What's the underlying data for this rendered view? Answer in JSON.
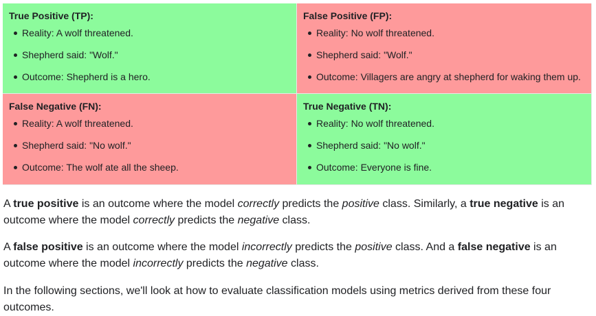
{
  "matrix": {
    "tp": {
      "title": "True Positive (TP):",
      "items": [
        "Reality: A wolf threatened.",
        "Shepherd said: \"Wolf.\"",
        "Outcome: Shepherd is a hero."
      ]
    },
    "fp": {
      "title": "False Positive (FP):",
      "items": [
        "Reality: No wolf threatened.",
        "Shepherd said: \"Wolf.\"",
        "Outcome: Villagers are angry at shepherd for waking them up."
      ]
    },
    "fn": {
      "title": "False Negative (FN):",
      "items": [
        "Reality: A wolf threatened.",
        "Shepherd said: \"No wolf.\"",
        "Outcome: The wolf ate all the sheep."
      ]
    },
    "tn": {
      "title": "True Negative (TN):",
      "items": [
        "Reality: No wolf threatened.",
        "Shepherd said: \"No wolf.\"",
        "Outcome: Everyone is fine."
      ]
    },
    "colors": {
      "green": "#8cfb9c",
      "red": "#fe9a9b"
    }
  },
  "paragraphs": {
    "p1": {
      "s1": "A ",
      "b1": "true positive",
      "s2": " is an outcome where the model ",
      "i1": "correctly",
      "s3": " predicts the ",
      "i2": "positive",
      "s4": " class. Similarly, a ",
      "b2": "true negative",
      "s5": " is an outcome where the model ",
      "i3": "correctly",
      "s6": " predicts the ",
      "i4": "negative",
      "s7": " class."
    },
    "p2": {
      "s1": "A ",
      "b1": "false positive",
      "s2": " is an outcome where the model ",
      "i1": "incorrectly",
      "s3": " predicts the ",
      "i2": "positive",
      "s4": " class. And a ",
      "b2": "false negative",
      "s5": " is an outcome where the model ",
      "i3": "incorrectly",
      "s6": " predicts the ",
      "i4": "negative",
      "s7": " class."
    },
    "p3": {
      "text": "In the following sections, we'll look at how to evaluate classification models using metrics derived from these four outcomes."
    }
  }
}
